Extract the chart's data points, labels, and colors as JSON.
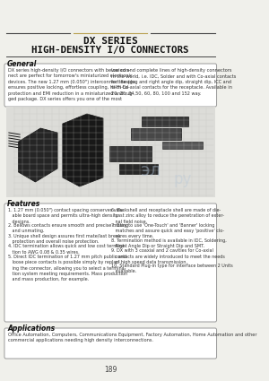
{
  "bg_color": "#f0f0eb",
  "title_line1": "DX SERIES",
  "title_line2": "HIGH-DENSITY I/O CONNECTORS",
  "section_general": "General",
  "section_features": "Features",
  "section_applications": "Applications",
  "gen_text_left": "DX series high-density I/O connectors with below con-\nnect are perfect for tomorrow's miniaturized electronic\ndevices. The new 1.27 mm (0.050\") interconnect design\nensures positive locking, effortless coupling, Hi-Hi-tal\nprotection and EMI reduction in a miniaturized and rug-\nged package. DX series offers you one of the most",
  "gen_text_right": "varied and complete lines of high-density connectors\nin the world, i.e. IDC, Solder and with Co-axial contacts\nfor the plug and right angle dip, straight dip, ICC and\nwith Co-axial contacts for the receptacle. Available in\n20, 26, 34,50, 60, 80, 100 and 152 way.",
  "features_left": [
    "1.27 mm (0.050\") contact spacing conserves valu-\n   able board space and permits ultra-high density\n   designs.",
    "Bellows contacts ensure smooth and precise mating\n   and unmating.",
    "Unique shell design assures first mate/last break\n   protection and overall noise protection.",
    "IDC termination allows quick and low cost termina-\n   tion to AWG 0.08 & 0.35 wires.",
    "Direct IDC termination of 1.27 mm pitch public and\n   loose piece contacts is possible simply by replac-\n   ing the connector, allowing you to select a termina-\n   tion system meeting requirements. Mass production\n   and mass production, for example."
  ],
  "features_right": [
    "Backshell and receptacle shell are made of die-\n   cast zinc alloy to reduce the penetration of exter-\n   nal field noise.",
    "Easy to use 'One-Touch' and 'Banner' locking\n   matches and assure quick and easy 'positive' clo-\n   sures every time.",
    "Termination method is available in IDC, Soldering,\n   Right Angle Dip or Straight Dip and SMT.",
    "DX with 3 coaxial and 2 cavities for Co-axial\n   contacts are widely introduced to meet the needs\n   of high speed data transmission.",
    "Standard Plug-in type for interface between 2 Units\n   available."
  ],
  "app_text": "Office Automation, Computers, Communications Equipment, Factory Automation, Home Automation and other\ncommercial applications needing high density interconnections.",
  "page_number": "189",
  "line_color_gold": "#b8a050",
  "line_color_dark": "#444444",
  "box_border_color": "#999999",
  "title_color": "#111111",
  "section_color": "#111111",
  "text_color": "#333333"
}
